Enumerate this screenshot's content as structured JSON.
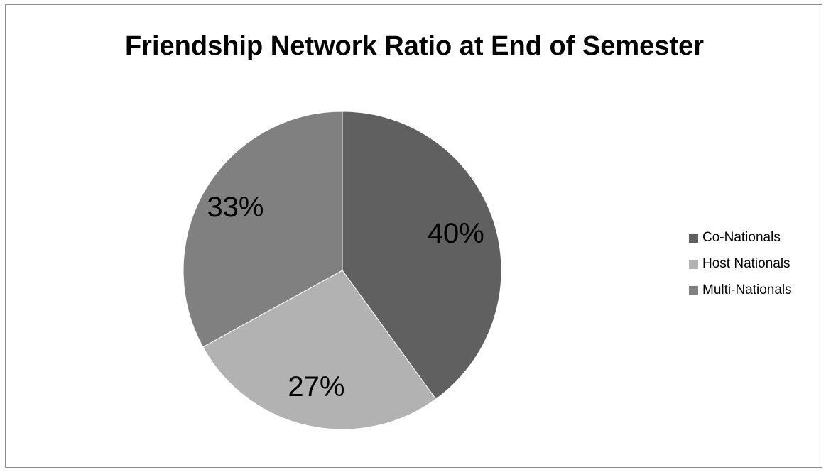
{
  "chart_data": {
    "type": "pie",
    "title": "Friendship Network Ratio at End of Semester",
    "legend_position": "right",
    "slices": [
      {
        "label": "Co-Nationals",
        "value": 40,
        "display": "40%",
        "color": "#606060"
      },
      {
        "label": "Host Nationals",
        "value": 27,
        "display": "27%",
        "color": "#b2b2b2"
      },
      {
        "label": "Multi-Nationals",
        "value": 33,
        "display": "33%",
        "color": "#808080"
      }
    ]
  }
}
